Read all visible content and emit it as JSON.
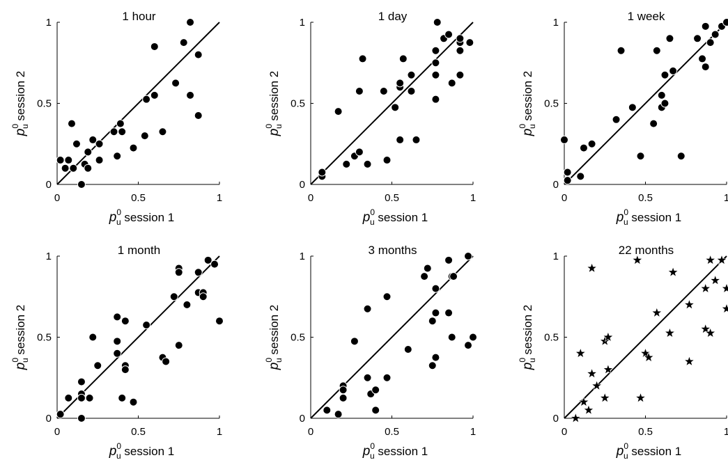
{
  "chart_data": [
    {
      "type": "scatter",
      "title": "1 hour",
      "xlabel": {
        "base": "p",
        "sup": "0",
        "sub": "u",
        "rest": " session 1"
      },
      "ylabel": {
        "base": "p",
        "sup": "0",
        "sub": "u",
        "rest": " session 2"
      },
      "xlim": [
        0,
        1
      ],
      "ylim": [
        0,
        1
      ],
      "xticks": [
        "0",
        "0.5",
        "1"
      ],
      "yticks": [
        "0",
        "0.5",
        "1"
      ],
      "marker": "circle",
      "diagonal": true,
      "grid": false,
      "points": [
        [
          0.02,
          0.15
        ],
        [
          0.05,
          0.1
        ],
        [
          0.07,
          0.15
        ],
        [
          0.09,
          0.375
        ],
        [
          0.1,
          0.1
        ],
        [
          0.12,
          0.25
        ],
        [
          0.15,
          0.0
        ],
        [
          0.17,
          0.125
        ],
        [
          0.19,
          0.2
        ],
        [
          0.19,
          0.1
        ],
        [
          0.22,
          0.275
        ],
        [
          0.26,
          0.15
        ],
        [
          0.26,
          0.25
        ],
        [
          0.35,
          0.325
        ],
        [
          0.37,
          0.175
        ],
        [
          0.39,
          0.375
        ],
        [
          0.4,
          0.325
        ],
        [
          0.47,
          0.225
        ],
        [
          0.54,
          0.3
        ],
        [
          0.55,
          0.525
        ],
        [
          0.6,
          0.55
        ],
        [
          0.6,
          0.85
        ],
        [
          0.65,
          0.325
        ],
        [
          0.73,
          0.625
        ],
        [
          0.78,
          0.875
        ],
        [
          0.82,
          0.55
        ],
        [
          0.82,
          1.0
        ],
        [
          0.87,
          0.8
        ],
        [
          0.87,
          0.425
        ]
      ]
    },
    {
      "type": "scatter",
      "title": "1 day",
      "xlabel": {
        "base": "p",
        "sup": "0",
        "sub": "u",
        "rest": " session 1"
      },
      "ylabel": {
        "base": "p",
        "sup": "0",
        "sub": "u",
        "rest": " session 2"
      },
      "xlim": [
        0,
        1
      ],
      "ylim": [
        0,
        1
      ],
      "xticks": [
        "0",
        "0.5",
        "1"
      ],
      "yticks": [
        "0",
        "0.5",
        "1"
      ],
      "marker": "circle",
      "diagonal": true,
      "grid": false,
      "points": [
        [
          0.07,
          0.05
        ],
        [
          0.07,
          0.075
        ],
        [
          0.17,
          0.45
        ],
        [
          0.22,
          0.125
        ],
        [
          0.27,
          0.175
        ],
        [
          0.3,
          0.2
        ],
        [
          0.3,
          0.575
        ],
        [
          0.32,
          0.775
        ],
        [
          0.35,
          0.125
        ],
        [
          0.45,
          0.575
        ],
        [
          0.47,
          0.15
        ],
        [
          0.52,
          0.475
        ],
        [
          0.55,
          0.6
        ],
        [
          0.55,
          0.625
        ],
        [
          0.55,
          0.275
        ],
        [
          0.57,
          0.775
        ],
        [
          0.62,
          0.575
        ],
        [
          0.62,
          0.675
        ],
        [
          0.65,
          0.275
        ],
        [
          0.77,
          0.525
        ],
        [
          0.77,
          0.675
        ],
        [
          0.77,
          0.825
        ],
        [
          0.77,
          0.75
        ],
        [
          0.78,
          1.0
        ],
        [
          0.82,
          0.9
        ],
        [
          0.85,
          0.925
        ],
        [
          0.87,
          0.625
        ],
        [
          0.92,
          0.875
        ],
        [
          0.92,
          0.825
        ],
        [
          0.92,
          0.9
        ],
        [
          0.92,
          0.675
        ],
        [
          0.98,
          0.875
        ]
      ]
    },
    {
      "type": "scatter",
      "title": "1 week",
      "xlabel": {
        "base": "p",
        "sup": "0",
        "sub": "u",
        "rest": " session 1"
      },
      "ylabel": {
        "base": "p",
        "sup": "0",
        "sub": "u",
        "rest": " session 2"
      },
      "xlim": [
        0,
        1
      ],
      "ylim": [
        0,
        1
      ],
      "xticks": [
        "0",
        "0.5",
        "1"
      ],
      "yticks": [
        "0",
        "0.5",
        "1"
      ],
      "marker": "circle",
      "diagonal": true,
      "grid": false,
      "points": [
        [
          0.0,
          0.275
        ],
        [
          0.02,
          0.075
        ],
        [
          0.02,
          0.025
        ],
        [
          0.1,
          0.05
        ],
        [
          0.12,
          0.225
        ],
        [
          0.17,
          0.25
        ],
        [
          0.32,
          0.4
        ],
        [
          0.35,
          0.825
        ],
        [
          0.42,
          0.475
        ],
        [
          0.47,
          0.175
        ],
        [
          0.55,
          0.375
        ],
        [
          0.57,
          0.825
        ],
        [
          0.6,
          0.475
        ],
        [
          0.6,
          0.55
        ],
        [
          0.62,
          0.5
        ],
        [
          0.62,
          0.675
        ],
        [
          0.65,
          0.9
        ],
        [
          0.67,
          0.7
        ],
        [
          0.72,
          0.175
        ],
        [
          0.82,
          0.9
        ],
        [
          0.85,
          0.775
        ],
        [
          0.87,
          0.975
        ],
        [
          0.87,
          0.725
        ],
        [
          0.9,
          0.875
        ],
        [
          0.93,
          0.925
        ],
        [
          0.97,
          0.975
        ],
        [
          1.0,
          1.0
        ]
      ]
    },
    {
      "type": "scatter",
      "title": "1 month",
      "xlabel": {
        "base": "p",
        "sup": "0",
        "sub": "u",
        "rest": " session 1"
      },
      "ylabel": {
        "base": "p",
        "sup": "0",
        "sub": "u",
        "rest": " session 2"
      },
      "xlim": [
        0,
        1
      ],
      "ylim": [
        0,
        1
      ],
      "xticks": [
        "0",
        "0.5",
        "1"
      ],
      "yticks": [
        "0",
        "0.5",
        "1"
      ],
      "marker": "circle",
      "diagonal": true,
      "grid": false,
      "points": [
        [
          0.02,
          0.025
        ],
        [
          0.07,
          0.125
        ],
        [
          0.15,
          0.15
        ],
        [
          0.15,
          0.225
        ],
        [
          0.15,
          0.125
        ],
        [
          0.15,
          0.0
        ],
        [
          0.2,
          0.125
        ],
        [
          0.22,
          0.5
        ],
        [
          0.25,
          0.325
        ],
        [
          0.37,
          0.625
        ],
        [
          0.37,
          0.475
        ],
        [
          0.37,
          0.4
        ],
        [
          0.4,
          0.125
        ],
        [
          0.42,
          0.6
        ],
        [
          0.42,
          0.325
        ],
        [
          0.42,
          0.3
        ],
        [
          0.47,
          0.1
        ],
        [
          0.55,
          0.575
        ],
        [
          0.65,
          0.375
        ],
        [
          0.67,
          0.35
        ],
        [
          0.72,
          0.75
        ],
        [
          0.75,
          0.925
        ],
        [
          0.75,
          0.9
        ],
        [
          0.75,
          0.45
        ],
        [
          0.8,
          0.7
        ],
        [
          0.87,
          0.775
        ],
        [
          0.87,
          0.9
        ],
        [
          0.9,
          0.775
        ],
        [
          0.9,
          0.75
        ],
        [
          0.93,
          0.975
        ],
        [
          0.97,
          0.95
        ],
        [
          1.0,
          0.6
        ]
      ]
    },
    {
      "type": "scatter",
      "title": "3 months",
      "xlabel": {
        "base": "p",
        "sup": "0",
        "sub": "u",
        "rest": " session 1"
      },
      "ylabel": {
        "base": "p",
        "sup": "0",
        "sub": "u",
        "rest": " session 2"
      },
      "xlim": [
        0,
        1
      ],
      "ylim": [
        0,
        1
      ],
      "xticks": [
        "0",
        "0.5",
        "1"
      ],
      "yticks": [
        "0",
        "0.5",
        "1"
      ],
      "marker": "circle",
      "diagonal": true,
      "grid": false,
      "points": [
        [
          0.1,
          0.05
        ],
        [
          0.17,
          0.025
        ],
        [
          0.2,
          0.2
        ],
        [
          0.2,
          0.175
        ],
        [
          0.2,
          0.125
        ],
        [
          0.27,
          0.475
        ],
        [
          0.35,
          0.675
        ],
        [
          0.35,
          0.25
        ],
        [
          0.37,
          0.15
        ],
        [
          0.4,
          0.175
        ],
        [
          0.4,
          0.05
        ],
        [
          0.47,
          0.75
        ],
        [
          0.47,
          0.25
        ],
        [
          0.6,
          0.425
        ],
        [
          0.7,
          0.875
        ],
        [
          0.72,
          0.925
        ],
        [
          0.75,
          0.6
        ],
        [
          0.75,
          0.325
        ],
        [
          0.77,
          0.8
        ],
        [
          0.77,
          0.65
        ],
        [
          0.77,
          0.375
        ],
        [
          0.85,
          0.975
        ],
        [
          0.85,
          0.65
        ],
        [
          0.87,
          0.5
        ],
        [
          0.87,
          0.875
        ],
        [
          0.88,
          0.875
        ],
        [
          0.97,
          1.0
        ],
        [
          0.97,
          0.45
        ],
        [
          1.0,
          0.5
        ]
      ]
    },
    {
      "type": "scatter",
      "title": "22 months",
      "xlabel": {
        "base": "p",
        "sup": "0",
        "sub": "u",
        "rest": " session 1"
      },
      "ylabel": {
        "base": "p",
        "sup": "0",
        "sub": "u",
        "rest": " session 2"
      },
      "xlim": [
        0,
        1
      ],
      "ylim": [
        0,
        1
      ],
      "xticks": [
        "0",
        "0.5",
        "1"
      ],
      "yticks": [
        "0",
        "0.5",
        "1"
      ],
      "marker": "star",
      "diagonal": true,
      "grid": false,
      "points": [
        [
          0.07,
          0.0
        ],
        [
          0.1,
          0.4
        ],
        [
          0.12,
          0.1
        ],
        [
          0.15,
          0.05
        ],
        [
          0.17,
          0.925
        ],
        [
          0.17,
          0.275
        ],
        [
          0.2,
          0.2
        ],
        [
          0.25,
          0.475
        ],
        [
          0.25,
          0.125
        ],
        [
          0.27,
          0.5
        ],
        [
          0.27,
          0.3
        ],
        [
          0.45,
          0.975
        ],
        [
          0.47,
          0.125
        ],
        [
          0.5,
          0.4
        ],
        [
          0.52,
          0.375
        ],
        [
          0.57,
          0.65
        ],
        [
          0.65,
          0.525
        ],
        [
          0.67,
          0.9
        ],
        [
          0.77,
          0.35
        ],
        [
          0.77,
          0.7
        ],
        [
          0.87,
          0.8
        ],
        [
          0.87,
          0.55
        ],
        [
          0.9,
          0.525
        ],
        [
          0.9,
          0.975
        ],
        [
          0.93,
          0.85
        ],
        [
          0.97,
          0.975
        ],
        [
          1.0,
          0.8
        ],
        [
          1.0,
          0.675
        ]
      ]
    }
  ]
}
